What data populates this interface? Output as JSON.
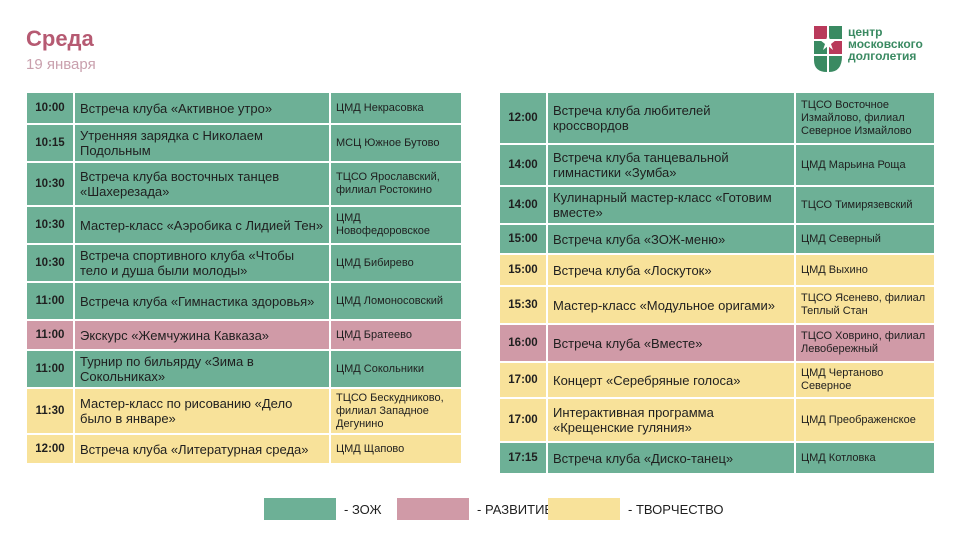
{
  "header": {
    "title": "Среда",
    "date": "19 января"
  },
  "logo": {
    "line1": "центр",
    "line2": "московского",
    "line3": "долголетия"
  },
  "colors": {
    "zozh": "#6db096",
    "razv": "#d09aa7",
    "tvor": "#f8e29a",
    "title": "#b65a72"
  },
  "left": [
    {
      "time": "10:00",
      "event": "Встреча клуба «Активное утро»",
      "place": "ЦМД Некрасовка",
      "cat": "zozh"
    },
    {
      "time": "10:15",
      "event": "Утренняя зарядка с Николаем Подольным",
      "place": "МСЦ Южное Бутово",
      "cat": "zozh"
    },
    {
      "time": "10:30",
      "event": "Встреча клуба восточных танцев «Шахерезада»",
      "place": "ТЦСО Ярославский, филиал Ростокино",
      "cat": "zozh"
    },
    {
      "time": "10:30",
      "event": "Мастер-класс «Аэробика с Лидией Тен»",
      "place": "ЦМД Новофедоровское",
      "cat": "zozh"
    },
    {
      "time": "10:30",
      "event": "Встреча спортивного клуба «Чтобы тело и душа были молоды»",
      "place": "ЦМД Бибирево",
      "cat": "zozh"
    },
    {
      "time": "11:00",
      "event": "Встреча клуба «Гимнастика здоровья»",
      "place": "ЦМД Ломоносовский",
      "cat": "zozh"
    },
    {
      "time": "11:00",
      "event": "Экскурс «Жемчужина Кавказа»",
      "place": "ЦМД Братеево",
      "cat": "razv"
    },
    {
      "time": "11:00",
      "event": "Турнир по бильярду «Зима в Сокольниках»",
      "place": "ЦМД Сокольники",
      "cat": "zozh"
    },
    {
      "time": "11:30",
      "event": "Мастер-класс по рисованию «Дело было в январе»",
      "place": "ТЦСО Бескудниково, филиал Западное Дегунино",
      "cat": "tvor"
    },
    {
      "time": "12:00",
      "event": "Встреча клуба «Литературная среда»",
      "place": "ЦМД Щапово",
      "cat": "tvor"
    }
  ],
  "right": [
    {
      "time": "12:00",
      "event": "Встреча клуба любителей кроссвордов",
      "place": "ТЦСО Восточное Измайлово, филиал Северное Измайлово",
      "cat": "zozh"
    },
    {
      "time": "14:00",
      "event": "Встреча клуба танцевальной гимнастики «Зумба»",
      "place": "ЦМД Марьина Роща",
      "cat": "zozh"
    },
    {
      "time": "14:00",
      "event": "Кулинарный мастер-класс «Готовим вместе»",
      "place": "ТЦСО Тимирязевский",
      "cat": "zozh"
    },
    {
      "time": "15:00",
      "event": "Встреча клуба «ЗОЖ-меню»",
      "place": "ЦМД Северный",
      "cat": "zozh"
    },
    {
      "time": "15:00",
      "event": "Встреча клуба «Лоскуток»",
      "place": "ЦМД Выхино",
      "cat": "tvor"
    },
    {
      "time": "15:30",
      "event": "Мастер-класс «Модульное оригами»",
      "place": "ТЦСО Ясенево, филиал Теплый Стан",
      "cat": "tvor"
    },
    {
      "time": "16:00",
      "event": "Встреча клуба «Вместе»",
      "place": "ТЦСО Ховрино, филиал Левобережный",
      "cat": "razv"
    },
    {
      "time": "17:00",
      "event": "Концерт «Серебряные голоса»",
      "place": "ЦМД Чертаново Северное",
      "cat": "tvor"
    },
    {
      "time": "17:00",
      "event": "Интерактивная программа «Крещенские гуляния»",
      "place": "ЦМД Преображенское",
      "cat": "tvor"
    },
    {
      "time": "17:15",
      "event": "Встреча клуба «Диско-танец»",
      "place": "ЦМД Котловка",
      "cat": "zozh"
    }
  ],
  "legend": {
    "zozh": "- ЗОЖ",
    "razv": "- РАЗВИТИЕ",
    "tvor": "- ТВОРЧЕСТВО"
  }
}
